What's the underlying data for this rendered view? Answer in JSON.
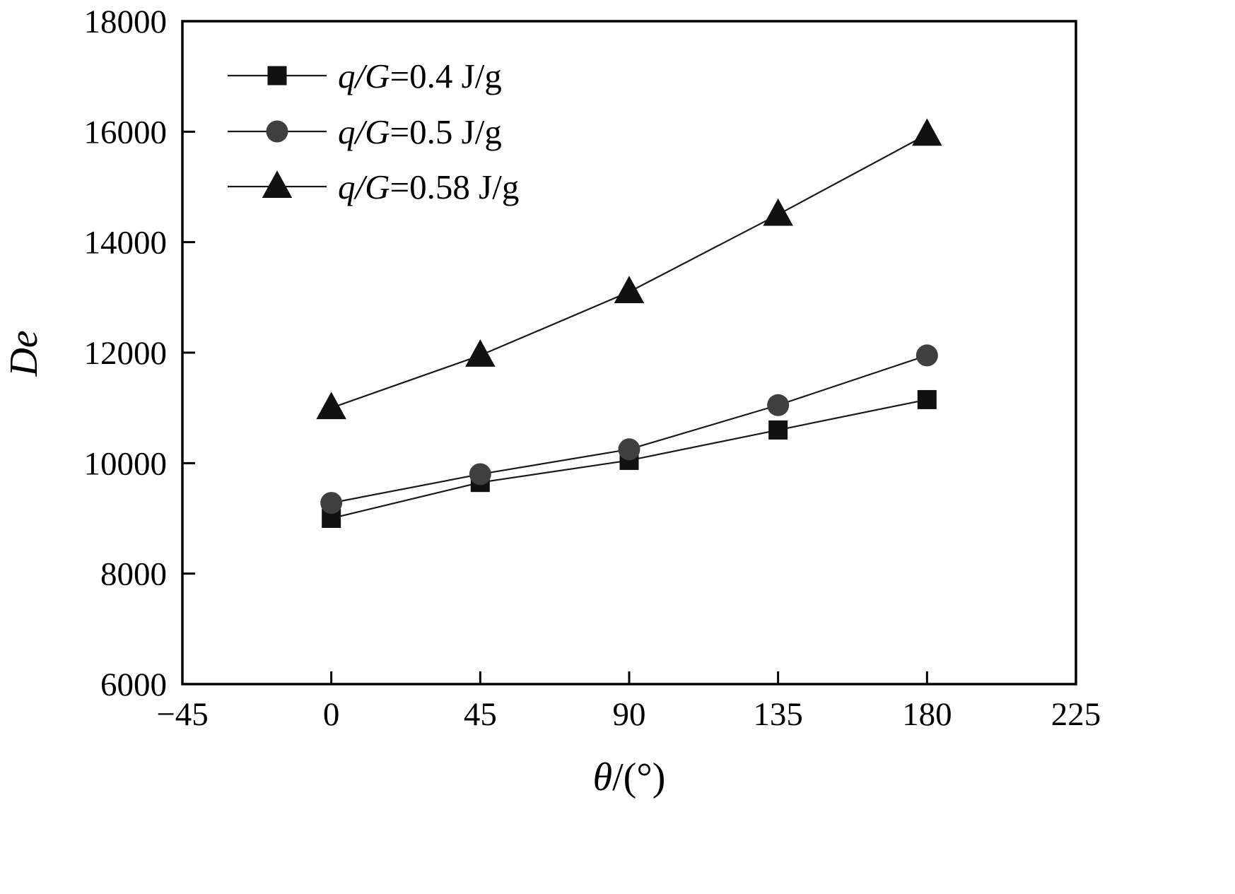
{
  "chart_data": {
    "type": "line",
    "title": "",
    "x": [
      0,
      45,
      90,
      135,
      180
    ],
    "series": [
      {
        "name": "q/G=0.4 J/g",
        "marker": "square",
        "marker_color": "#111111",
        "line_color": "#1a1a1a",
        "values": [
          9000,
          9650,
          10050,
          10600,
          11150
        ]
      },
      {
        "name": "q/G=0.5 J/g",
        "marker": "circle",
        "marker_color": "#3f3f3f",
        "line_color": "#1a1a1a",
        "values": [
          9280,
          9800,
          10250,
          11050,
          11950
        ]
      },
      {
        "name": "q/G=0.58 J/g",
        "marker": "triangle",
        "marker_color": "#111111",
        "line_color": "#1a1a1a",
        "values": [
          11000,
          11950,
          13100,
          14500,
          15950
        ]
      }
    ],
    "xlabel_italic": "θ",
    "xlabel_regular": "/(°)",
    "ylabel": "De",
    "xlim": [
      -45,
      225
    ],
    "ylim": [
      6000,
      18000
    ],
    "xticks": [
      -45,
      0,
      45,
      90,
      135,
      180,
      225
    ],
    "yticks": [
      6000,
      8000,
      10000,
      12000,
      14000,
      16000,
      18000
    ],
    "xtick_labels": [
      "−45",
      "0",
      "45",
      "90",
      "135",
      "180",
      "225"
    ],
    "ytick_labels": [
      "6000",
      "8000",
      "10000",
      "12000",
      "14000",
      "16000",
      "18000"
    ],
    "grid": false,
    "legend_position": "upper-left",
    "axis_color": "#000000",
    "background_color": "#ffffff"
  }
}
